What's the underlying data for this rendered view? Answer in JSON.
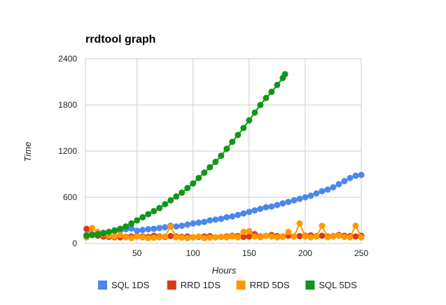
{
  "chart_data": {
    "type": "line",
    "title": "rrdtool graph",
    "xlabel": "Hours",
    "ylabel": "Time",
    "xlim": [
      4,
      250
    ],
    "ylim": [
      0,
      2400
    ],
    "x_ticks": [
      50,
      100,
      150,
      200,
      250
    ],
    "x_tick_labels": [
      "50",
      "100",
      "150",
      "200",
      "250"
    ],
    "y_ticks": [
      0,
      600,
      1200,
      1800,
      2400
    ],
    "y_tick_labels": [
      "0",
      "600",
      "1200",
      "1800",
      "2400"
    ],
    "grid": true,
    "legend_position": "bottom",
    "series": [
      {
        "name": "SQL 1DS",
        "color": "#4a87ee",
        "x": [
          5,
          10,
          15,
          20,
          25,
          30,
          35,
          40,
          45,
          50,
          55,
          60,
          65,
          70,
          75,
          80,
          85,
          90,
          95,
          100,
          105,
          110,
          115,
          120,
          125,
          130,
          135,
          140,
          145,
          150,
          155,
          160,
          165,
          170,
          175,
          180,
          185,
          190,
          195,
          200,
          205,
          210,
          215,
          220,
          225,
          230,
          235,
          240,
          245,
          250
        ],
        "values": [
          110,
          120,
          130,
          140,
          150,
          160,
          170,
          185,
          195,
          165,
          175,
          185,
          190,
          200,
          210,
          230,
          220,
          230,
          245,
          260,
          270,
          280,
          300,
          310,
          320,
          340,
          350,
          370,
          390,
          410,
          430,
          450,
          470,
          480,
          500,
          520,
          540,
          560,
          580,
          600,
          620,
          650,
          680,
          700,
          730,
          770,
          810,
          850,
          880,
          890
        ]
      },
      {
        "name": "RRD 1DS",
        "color": "#dc3912",
        "x": [
          5,
          10,
          15,
          20,
          25,
          30,
          35,
          40,
          45,
          50,
          55,
          60,
          65,
          70,
          75,
          80,
          85,
          90,
          95,
          100,
          105,
          110,
          115,
          120,
          125,
          130,
          135,
          140,
          145,
          150,
          155,
          160,
          165,
          170,
          175,
          180,
          185,
          190,
          195,
          200,
          205,
          210,
          215,
          220,
          225,
          230,
          235,
          240,
          245,
          250
        ],
        "values": [
          190,
          110,
          100,
          90,
          85,
          80,
          80,
          85,
          90,
          95,
          90,
          85,
          100,
          90,
          85,
          95,
          90,
          85,
          90,
          80,
          85,
          90,
          95,
          80,
          85,
          90,
          100,
          95,
          85,
          90,
          120,
          90,
          100,
          110,
          95,
          90,
          100,
          90,
          95,
          100,
          105,
          95,
          100,
          90,
          95,
          110,
          100,
          95,
          90,
          100
        ]
      },
      {
        "name": "RRD 5DS",
        "color": "#ff9900",
        "x": [
          5,
          10,
          15,
          20,
          25,
          30,
          35,
          40,
          45,
          50,
          55,
          60,
          65,
          70,
          75,
          80,
          85,
          90,
          95,
          100,
          105,
          110,
          115,
          120,
          125,
          130,
          135,
          140,
          145,
          150,
          155,
          160,
          165,
          170,
          175,
          180,
          185,
          190,
          195,
          200,
          205,
          210,
          215,
          220,
          225,
          230,
          235,
          240,
          245,
          250
        ],
        "values": [
          80,
          200,
          150,
          120,
          100,
          90,
          110,
          80,
          70,
          90,
          80,
          70,
          75,
          80,
          90,
          220,
          80,
          75,
          70,
          80,
          90,
          70,
          75,
          80,
          85,
          80,
          90,
          80,
          150,
          160,
          90,
          80,
          100,
          90,
          80,
          85,
          150,
          90,
          260,
          90,
          80,
          90,
          230,
          80,
          90,
          100,
          85,
          80,
          230,
          80
        ]
      },
      {
        "name": "SQL 5DS",
        "color": "#109618",
        "x": [
          5,
          10,
          15,
          20,
          25,
          30,
          35,
          40,
          45,
          50,
          55,
          60,
          65,
          70,
          75,
          80,
          85,
          90,
          95,
          100,
          105,
          110,
          115,
          120,
          125,
          130,
          135,
          140,
          145,
          150,
          155,
          160,
          165,
          170,
          175,
          180,
          182
        ],
        "values": [
          100,
          110,
          120,
          130,
          150,
          170,
          190,
          220,
          260,
          300,
          340,
          380,
          420,
          460,
          510,
          560,
          610,
          660,
          720,
          780,
          850,
          920,
          990,
          1060,
          1140,
          1230,
          1320,
          1410,
          1500,
          1600,
          1700,
          1800,
          1890,
          1970,
          2060,
          2150,
          2200
        ]
      }
    ]
  }
}
